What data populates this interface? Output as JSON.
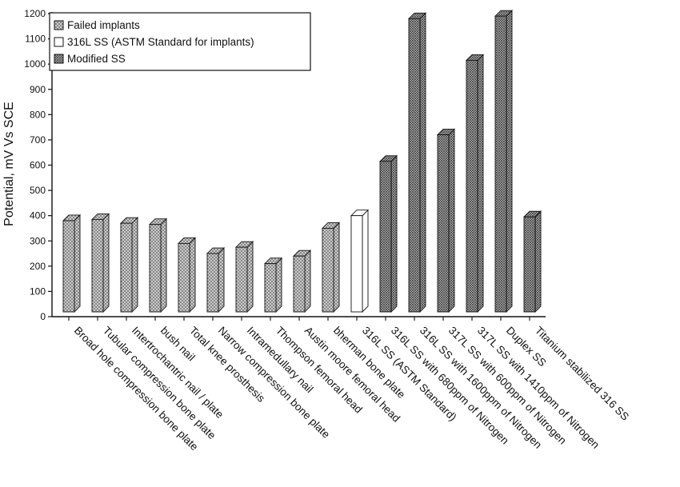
{
  "chart_data": {
    "type": "bar",
    "title": "",
    "xlabel": "",
    "ylabel": "Potential, mV Vs  SCE",
    "ylim": [
      0,
      1200
    ],
    "yticks": [
      0,
      100,
      200,
      300,
      400,
      500,
      600,
      700,
      800,
      900,
      1000,
      1100,
      1200
    ],
    "legend_position": "top-left",
    "legend": [
      {
        "label": "Failed implants",
        "pattern": "crosshatch"
      },
      {
        "label": "316L SS (ASTM Standard for implants)",
        "pattern": "empty"
      },
      {
        "label": "Modified SS",
        "pattern": "dense"
      }
    ],
    "categories": [
      "Broad hole compression bone plate",
      "Tubular compression bone plate",
      "Intertrochantric nail / plate",
      "bush nail",
      "Total knee prosthesis",
      "Narrow compression bone plate",
      "Intramedullary nail",
      "Thompson femoral head",
      "Austin moore femoral head",
      "bherman bone plate",
      "316L SS (ASTM Standard)",
      "316L SS with 680ppm of Nitrogen",
      "316L SS with 1600ppm of Nitrogen",
      "317L SS with 600ppm of Nitrogen",
      "317L SS with 1410ppm of Nitrogen",
      "Duplex SS",
      "Titanium stabilized 316 SS"
    ],
    "values": [
      380,
      385,
      370,
      365,
      290,
      250,
      275,
      210,
      240,
      350,
      400,
      615,
      1180,
      720,
      1015,
      1190,
      395
    ],
    "bar_group": [
      0,
      0,
      0,
      0,
      0,
      0,
      0,
      0,
      0,
      0,
      1,
      2,
      2,
      2,
      2,
      2,
      2
    ]
  }
}
